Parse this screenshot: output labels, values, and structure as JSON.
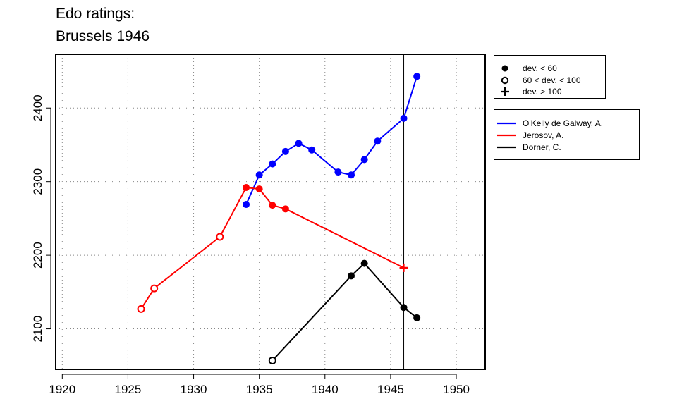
{
  "title_lines": [
    "Edo ratings:",
    "Brussels 1946"
  ],
  "legend_deviation": [
    {
      "marker": "solid-circle",
      "label": "dev. < 60"
    },
    {
      "marker": "open-circle",
      "label": "60 < dev. < 100"
    },
    {
      "marker": "plus",
      "label": "dev. > 100"
    }
  ],
  "chart_data": {
    "type": "line",
    "title": "Edo ratings: Brussels 1946",
    "xlabel": "",
    "ylabel": "",
    "xlim": [
      1919.5,
      1952.2
    ],
    "ylim": [
      2045,
      2473
    ],
    "x_ticks": [
      1920,
      1925,
      1930,
      1935,
      1940,
      1945,
      1950
    ],
    "y_ticks": [
      2100,
      2200,
      2300,
      2400
    ],
    "grid": true,
    "reference_line_x": 1946,
    "legend_placement": "right, outside plot",
    "series": [
      {
        "name": "O'Kelly de Galway, A.",
        "color": "#0000ff",
        "points": [
          {
            "x": 1934,
            "y": 2269,
            "marker": "solid-circle"
          },
          {
            "x": 1935,
            "y": 2309,
            "marker": "solid-circle"
          },
          {
            "x": 1936,
            "y": 2324,
            "marker": "solid-circle"
          },
          {
            "x": 1937,
            "y": 2341,
            "marker": "solid-circle"
          },
          {
            "x": 1938,
            "y": 2352,
            "marker": "solid-circle"
          },
          {
            "x": 1939,
            "y": 2343,
            "marker": "solid-circle"
          },
          {
            "x": 1941,
            "y": 2313,
            "marker": "solid-circle"
          },
          {
            "x": 1942,
            "y": 2309,
            "marker": "solid-circle"
          },
          {
            "x": 1943,
            "y": 2330,
            "marker": "solid-circle"
          },
          {
            "x": 1944,
            "y": 2355,
            "marker": "solid-circle"
          },
          {
            "x": 1946,
            "y": 2386,
            "marker": "solid-circle"
          },
          {
            "x": 1947,
            "y": 2443,
            "marker": "solid-circle"
          }
        ]
      },
      {
        "name": "Jerosov, A.",
        "color": "#ff0000",
        "points": [
          {
            "x": 1926,
            "y": 2127,
            "marker": "open-circle"
          },
          {
            "x": 1927,
            "y": 2155,
            "marker": "open-circle"
          },
          {
            "x": 1932,
            "y": 2225,
            "marker": "open-circle"
          },
          {
            "x": 1934,
            "y": 2292,
            "marker": "solid-circle"
          },
          {
            "x": 1935,
            "y": 2290,
            "marker": "solid-circle"
          },
          {
            "x": 1936,
            "y": 2268,
            "marker": "solid-circle"
          },
          {
            "x": 1937,
            "y": 2263,
            "marker": "solid-circle"
          },
          {
            "x": 1946,
            "y": 2183,
            "marker": "plus"
          }
        ]
      },
      {
        "name": "Dorner, C.",
        "color": "#000000",
        "points": [
          {
            "x": 1936,
            "y": 2057,
            "marker": "open-circle"
          },
          {
            "x": 1942,
            "y": 2172,
            "marker": "solid-circle"
          },
          {
            "x": 1943,
            "y": 2189,
            "marker": "solid-circle"
          },
          {
            "x": 1946,
            "y": 2129,
            "marker": "solid-circle"
          },
          {
            "x": 1947,
            "y": 2115,
            "marker": "solid-circle"
          }
        ]
      }
    ]
  }
}
